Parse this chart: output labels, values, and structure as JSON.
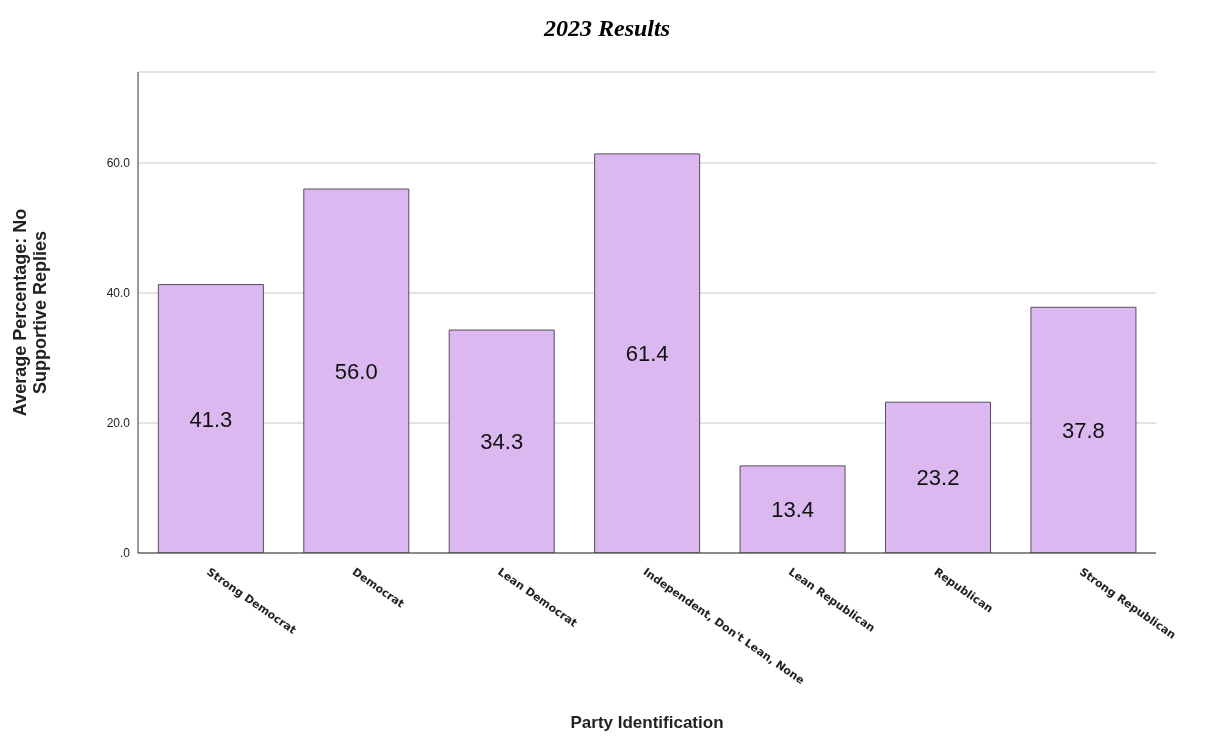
{
  "chart_data": {
    "type": "bar",
    "title": "2023 Results",
    "xlabel": "Party Identification",
    "ylabel": "Average Percentage: No Supportive Replies",
    "categories": [
      "Strong Democrat",
      "Democrat",
      "Lean Democrat",
      "Independent, Don't Lean, None",
      "Lean Republican",
      "Republican",
      "Strong Republican"
    ],
    "values": [
      41.3,
      56.0,
      34.3,
      61.4,
      13.4,
      23.2,
      37.8
    ],
    "value_labels": [
      "41.3",
      "56.0",
      "34.3",
      "61.4",
      "13.4",
      "23.2",
      "37.8"
    ],
    "color": "#dcb8f0",
    "ylim": [
      0,
      74
    ],
    "yticks": [
      {
        "value": 0,
        "label": ".0"
      },
      {
        "value": 20,
        "label": "20.0"
      },
      {
        "value": 40,
        "label": "40.0"
      },
      {
        "value": 60,
        "label": "60.0"
      }
    ],
    "grid": "y"
  }
}
